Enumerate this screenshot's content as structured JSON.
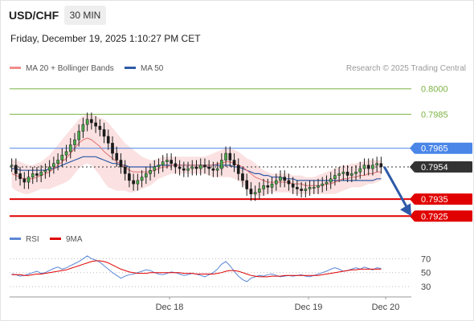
{
  "header": {
    "symbol": "USD/CHF",
    "timeframe": "30 MIN",
    "timestamp": "Friday, December 19, 2025 1:10:27 PM CET"
  },
  "legend": {
    "items": [
      {
        "label": "MA 20 + Bollinger Bands",
        "color": "#f08c8c"
      },
      {
        "label": "MA 50",
        "color": "#2e5aa8"
      }
    ],
    "copyright": "Research © 2025 Trading Central"
  },
  "rsi_legend": {
    "items": [
      {
        "label": "RSI",
        "color": "#5b87d6"
      },
      {
        "label": "9MA",
        "color": "#e00000"
      }
    ]
  },
  "chart_data": [
    {
      "type": "line",
      "title": "USD/CHF 30 MIN",
      "ylim": [
        0.7919,
        0.8006
      ],
      "x_ticks": [
        "Dec 18",
        "Dec 19",
        "Dec 20"
      ],
      "levels": [
        {
          "value": 0.8,
          "label": "0.8000",
          "color": "#7cb342",
          "kind": "resistance"
        },
        {
          "value": 0.7985,
          "label": "0.7985",
          "color": "#7cb342",
          "kind": "resistance"
        },
        {
          "value": 0.7965,
          "label": "0.7965",
          "color": "#4a86e8",
          "kind": "pivot"
        },
        {
          "value": 0.7954,
          "label": "0.7954",
          "color": "#333333",
          "kind": "last"
        },
        {
          "value": 0.7935,
          "label": "0.7935",
          "color": "#e00000",
          "kind": "target"
        },
        {
          "value": 0.7925,
          "label": "0.7925",
          "color": "#e00000",
          "kind": "target"
        }
      ],
      "forecast_arrow": {
        "from": 0.7954,
        "to": 0.7925,
        "direction": "down"
      },
      "price": [
        0.7955,
        0.795,
        0.7947,
        0.7945,
        0.7948,
        0.795,
        0.7949,
        0.7951,
        0.7952,
        0.7954,
        0.7956,
        0.7958,
        0.7961,
        0.7963,
        0.7967,
        0.797,
        0.7975,
        0.7979,
        0.7982,
        0.798,
        0.7978,
        0.7976,
        0.7972,
        0.7968,
        0.7962,
        0.7958,
        0.7954,
        0.795,
        0.7946,
        0.7944,
        0.7946,
        0.7948,
        0.795,
        0.7952,
        0.7954,
        0.7955,
        0.7957,
        0.7958,
        0.7956,
        0.7954,
        0.7953,
        0.7952,
        0.7953,
        0.7954,
        0.7953,
        0.7955,
        0.7954,
        0.7953,
        0.7952,
        0.7953,
        0.7958,
        0.7962,
        0.7958,
        0.7955,
        0.795,
        0.7946,
        0.7941,
        0.7938,
        0.7939,
        0.7941,
        0.7943,
        0.7942,
        0.7944,
        0.7946,
        0.7948,
        0.7946,
        0.7944,
        0.7942,
        0.7941,
        0.794,
        0.7941,
        0.7942,
        0.7942,
        0.7943,
        0.7944,
        0.7945,
        0.7947,
        0.7949,
        0.795,
        0.7951,
        0.7949,
        0.795,
        0.7951,
        0.7953,
        0.7955,
        0.7953,
        0.7955,
        0.7956,
        0.7954
      ],
      "ma20": [
        0.795,
        0.7949,
        0.7948,
        0.7947,
        0.7947,
        0.7947,
        0.7948,
        0.7949,
        0.795,
        0.7951,
        0.7953,
        0.7955,
        0.7957,
        0.7959,
        0.7962,
        0.7965,
        0.7968,
        0.797,
        0.7971,
        0.797,
        0.7968,
        0.7966,
        0.7963,
        0.7961,
        0.7959,
        0.7957,
        0.7956,
        0.7954,
        0.7952,
        0.7951,
        0.7951,
        0.7951,
        0.7951,
        0.7951,
        0.7952,
        0.7953,
        0.7954,
        0.7954,
        0.7955,
        0.7955,
        0.7955,
        0.7955,
        0.7955,
        0.7955,
        0.7955,
        0.7955,
        0.7955,
        0.7955,
        0.7955,
        0.7956,
        0.7956,
        0.7957,
        0.7957,
        0.7956,
        0.7955,
        0.7954,
        0.7952,
        0.795,
        0.7948,
        0.7947,
        0.7946,
        0.7945,
        0.7945,
        0.7945,
        0.7945,
        0.7945,
        0.7945,
        0.7944,
        0.7944,
        0.7944,
        0.7943,
        0.7943,
        0.7943,
        0.7943,
        0.7943,
        0.7944,
        0.7944,
        0.7945,
        0.7946,
        0.7947,
        0.7947,
        0.7948,
        0.7948,
        0.7949,
        0.7949,
        0.795,
        0.795,
        0.7951,
        0.7951
      ],
      "bb_upper": [
        0.7958,
        0.7958,
        0.7957,
        0.7956,
        0.7955,
        0.7955,
        0.7956,
        0.7957,
        0.7959,
        0.7961,
        0.7964,
        0.7967,
        0.797,
        0.7973,
        0.7976,
        0.7979,
        0.7982,
        0.7984,
        0.7985,
        0.7985,
        0.7984,
        0.7983,
        0.7982,
        0.798,
        0.7977,
        0.7974,
        0.7971,
        0.7968,
        0.7966,
        0.7964,
        0.7962,
        0.796,
        0.7959,
        0.7958,
        0.7958,
        0.7959,
        0.796,
        0.796,
        0.796,
        0.796,
        0.796,
        0.796,
        0.796,
        0.796,
        0.796,
        0.796,
        0.796,
        0.7961,
        0.7962,
        0.7963,
        0.7964,
        0.7965,
        0.7965,
        0.7964,
        0.7963,
        0.7961,
        0.7959,
        0.7958,
        0.7956,
        0.7954,
        0.7952,
        0.7951,
        0.795,
        0.795,
        0.795,
        0.795,
        0.795,
        0.7949,
        0.7949,
        0.7949,
        0.7948,
        0.7948,
        0.7948,
        0.7949,
        0.795,
        0.7951,
        0.7952,
        0.7953,
        0.7954,
        0.7955,
        0.7955,
        0.7956,
        0.7956,
        0.7957,
        0.7957,
        0.7958,
        0.7958,
        0.7958,
        0.7958
      ],
      "bb_lower": [
        0.7942,
        0.794,
        0.7939,
        0.7938,
        0.7938,
        0.7939,
        0.794,
        0.7941,
        0.7941,
        0.7941,
        0.7942,
        0.7943,
        0.7944,
        0.7945,
        0.7947,
        0.795,
        0.7953,
        0.7955,
        0.7956,
        0.7955,
        0.7952,
        0.7949,
        0.7945,
        0.7942,
        0.7941,
        0.794,
        0.794,
        0.794,
        0.7939,
        0.7939,
        0.794,
        0.7941,
        0.7942,
        0.7943,
        0.7945,
        0.7947,
        0.7948,
        0.7949,
        0.795,
        0.795,
        0.795,
        0.795,
        0.795,
        0.795,
        0.795,
        0.795,
        0.795,
        0.7949,
        0.7948,
        0.7948,
        0.7948,
        0.7948,
        0.7948,
        0.7947,
        0.7946,
        0.7944,
        0.7941,
        0.7938,
        0.7937,
        0.7937,
        0.7937,
        0.7938,
        0.7939,
        0.7939,
        0.7939,
        0.7939,
        0.7939,
        0.7938,
        0.7938,
        0.7938,
        0.7938,
        0.7938,
        0.7938,
        0.7938,
        0.7938,
        0.7938,
        0.7938,
        0.7938,
        0.7939,
        0.794,
        0.7941,
        0.7942,
        0.7942,
        0.7942,
        0.7943,
        0.7944,
        0.7944,
        0.7945,
        0.7946
      ],
      "ma50": [
        0.7953,
        0.7953,
        0.7952,
        0.7952,
        0.7952,
        0.7952,
        0.7952,
        0.7952,
        0.7952,
        0.7953,
        0.7953,
        0.7954,
        0.7955,
        0.7956,
        0.7957,
        0.7958,
        0.7959,
        0.796,
        0.796,
        0.796,
        0.796,
        0.7959,
        0.7958,
        0.7957,
        0.7956,
        0.7956,
        0.7955,
        0.7955,
        0.7954,
        0.7954,
        0.7954,
        0.7954,
        0.7954,
        0.7954,
        0.7954,
        0.7955,
        0.7955,
        0.7955,
        0.7955,
        0.7955,
        0.7955,
        0.7955,
        0.7955,
        0.7955,
        0.7955,
        0.7955,
        0.7955,
        0.7955,
        0.7955,
        0.7955,
        0.7955,
        0.7955,
        0.7955,
        0.7954,
        0.7954,
        0.7953,
        0.7952,
        0.7951,
        0.795,
        0.795,
        0.7949,
        0.7949,
        0.7948,
        0.7948,
        0.7948,
        0.7947,
        0.7947,
        0.7947,
        0.7946,
        0.7946,
        0.7946,
        0.7946,
        0.7946,
        0.7946,
        0.7946,
        0.7946,
        0.7946,
        0.7946,
        0.7946,
        0.7946,
        0.7946,
        0.7946,
        0.7946,
        0.7946,
        0.7946,
        0.7946,
        0.7946,
        0.7947,
        0.7947
      ]
    },
    {
      "type": "line",
      "title": "RSI",
      "ylim": [
        22,
        82
      ],
      "y_ticks": [
        70,
        50,
        30
      ],
      "series": [
        {
          "name": "RSI",
          "color": "#5b87d6",
          "values": [
            48,
            47,
            45,
            46,
            48,
            50,
            52,
            49,
            50,
            53,
            56,
            58,
            55,
            57,
            60,
            63,
            66,
            70,
            74,
            70,
            68,
            65,
            60,
            55,
            50,
            46,
            42,
            45,
            47,
            48,
            50,
            52,
            54,
            53,
            50,
            48,
            47,
            49,
            51,
            50,
            48,
            46,
            47,
            49,
            48,
            46,
            44,
            47,
            50,
            55,
            62,
            66,
            60,
            52,
            45,
            40,
            37,
            42,
            44,
            46,
            45,
            47,
            48,
            46,
            44,
            45,
            46,
            45,
            46,
            47,
            45,
            44,
            46,
            48,
            50,
            52,
            55,
            57,
            55,
            52,
            53,
            55,
            57,
            55,
            58,
            56,
            54,
            57,
            56
          ]
        },
        {
          "name": "9MA",
          "color": "#e00000",
          "values": [
            47,
            47,
            47,
            46,
            46,
            47,
            48,
            48,
            49,
            50,
            51,
            52,
            53,
            54,
            56,
            58,
            60,
            62,
            64,
            66,
            67,
            67,
            66,
            64,
            61,
            58,
            55,
            53,
            51,
            50,
            49,
            49,
            49,
            50,
            50,
            50,
            50,
            50,
            50,
            50,
            50,
            49,
            49,
            49,
            48,
            48,
            48,
            48,
            48,
            49,
            50,
            52,
            53,
            53,
            52,
            50,
            48,
            46,
            45,
            44,
            44,
            44,
            45,
            45,
            45,
            46,
            46,
            46,
            46,
            46,
            46,
            46,
            46,
            46,
            47,
            48,
            49,
            50,
            51,
            52,
            53,
            54,
            54,
            55,
            55,
            55,
            55,
            55,
            55
          ]
        }
      ]
    }
  ]
}
